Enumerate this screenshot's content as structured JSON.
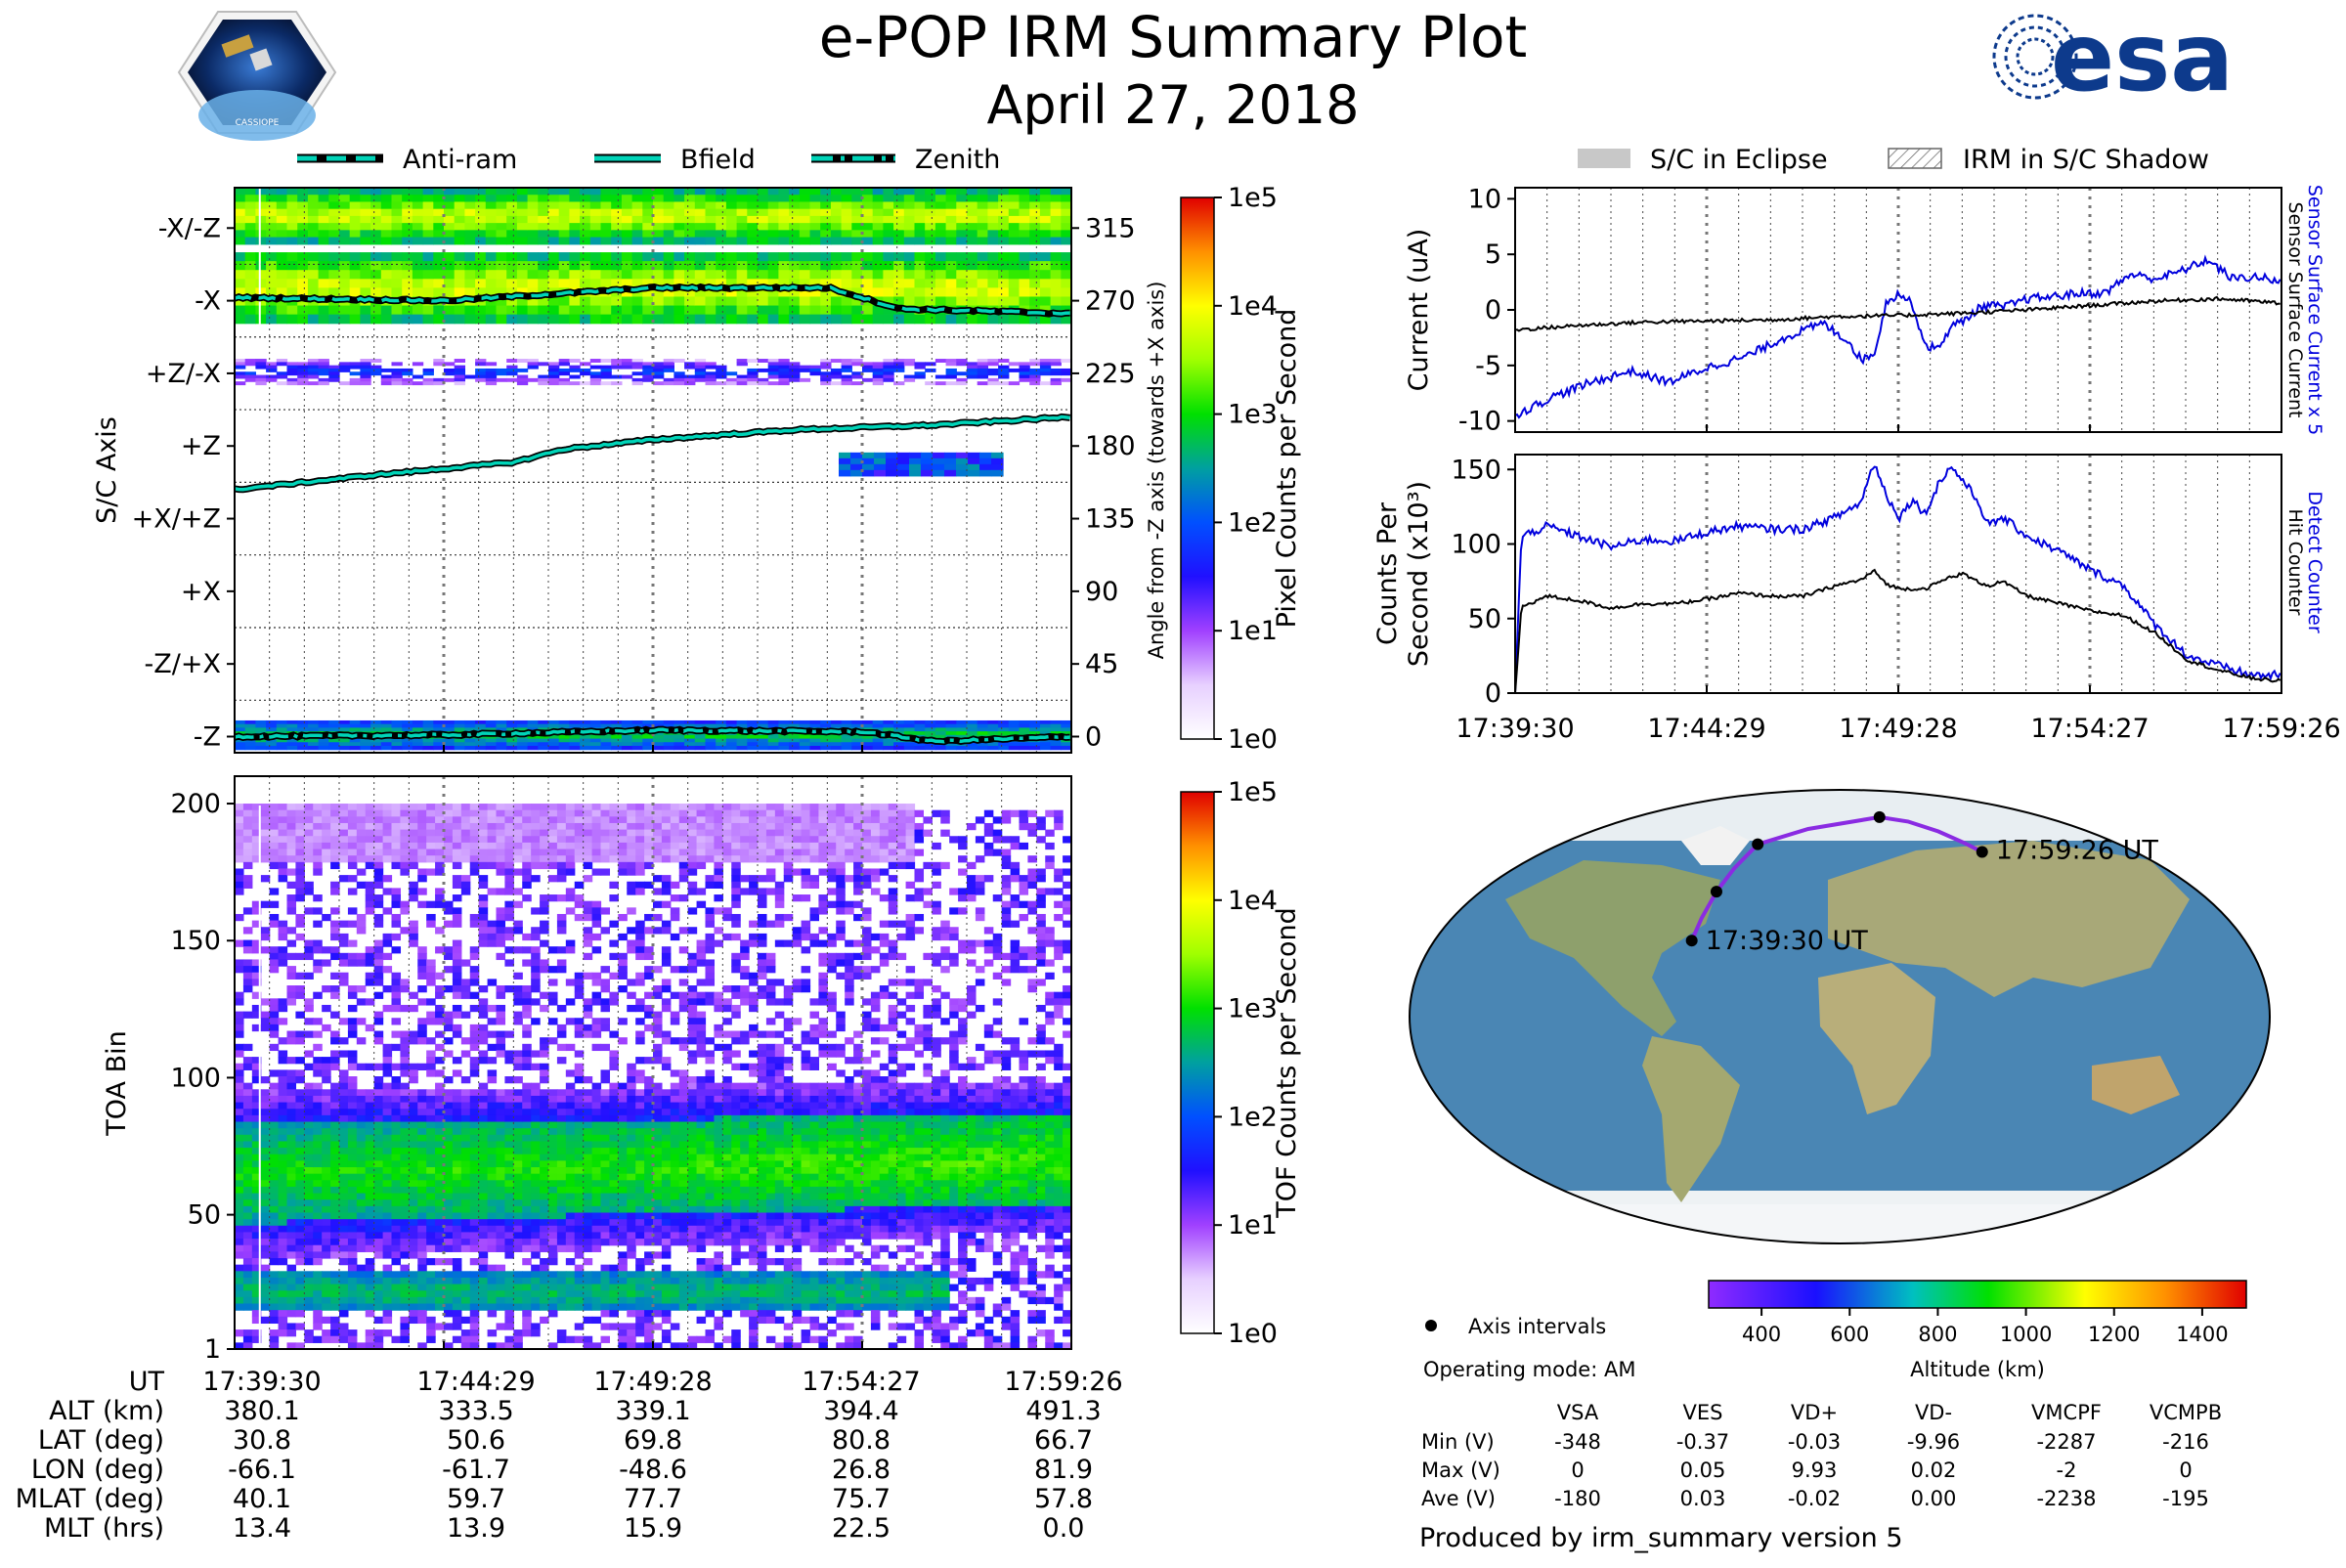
{
  "header": {
    "title": "e-POP IRM Summary Plot",
    "date": "April 27, 2018",
    "cassiope_logo_text": "CASSIOPE",
    "esa_logo_text": "esa"
  },
  "legend_left": {
    "items": [
      {
        "label": "Anti-ram",
        "style": "dashed"
      },
      {
        "label": "Bfield",
        "style": "solid"
      },
      {
        "label": "Zenith",
        "style": "dashdot"
      }
    ]
  },
  "legend_right": {
    "items": [
      {
        "label": "S/C in Eclipse",
        "style": "gray-fill"
      },
      {
        "label": "IRM in S/C Shadow",
        "style": "hatch"
      }
    ]
  },
  "colors": {
    "line_cyan": "#00d4b8",
    "blue_series": "#0000dd",
    "black_series": "#000000",
    "eclipse_gray": "#c8c8c8"
  },
  "colormap": [
    "#ffffff",
    "#e7d0ff",
    "#a040ff",
    "#2010ff",
    "#0050ff",
    "#00a0a0",
    "#00e000",
    "#a0ff00",
    "#ffff00",
    "#ff9000",
    "#e00000"
  ],
  "chart_data": [
    {
      "id": "pixel-spectrogram",
      "type": "heatmap",
      "ylabel": "S/C Axis",
      "right_ylabel": "Angle from -Z axis (towards +X axis)",
      "yticks": [
        "-X/-Z",
        "-X",
        "+Z/-X",
        "+Z",
        "+X/+Z",
        "+X",
        "-Z/+X",
        "-Z"
      ],
      "right_ticks": [
        "315",
        "270",
        "225",
        "180",
        "135",
        "90",
        "45",
        "0"
      ],
      "ylim": [
        -10,
        340
      ],
      "x_range_seconds": [
        0,
        1196
      ],
      "bands": [
        {
          "lo": 305,
          "hi": 340,
          "level": 3.3
        },
        {
          "lo": 256,
          "hi": 300,
          "level": 3.4
        },
        {
          "lo": 218,
          "hi": 234,
          "level": 1.4
        },
        {
          "lo": -8,
          "hi": 10,
          "level": 2.4
        }
      ],
      "lines": {
        "anti_ram": {
          "t": [
            0,
            300,
            600,
            850,
            950,
            1196
          ],
          "deg": [
            272,
            270,
            278,
            278,
            265,
            262
          ]
        },
        "bfield": {
          "t": [
            0,
            200,
            400,
            470,
            600,
            800,
            1000,
            1196
          ],
          "deg": [
            153,
            162,
            170,
            178,
            184,
            190,
            193,
            198
          ]
        },
        "zenith": {
          "t": [
            0,
            300,
            600,
            900,
            1000,
            1196
          ],
          "deg": [
            0,
            1,
            4,
            3,
            -3,
            0
          ]
        }
      },
      "colorbar": {
        "label": "Pixel Counts per Second",
        "ticks": [
          "1e0",
          "1e1",
          "1e2",
          "1e3",
          "1e4",
          "1e5"
        ]
      }
    },
    {
      "id": "toa-spectrogram",
      "type": "heatmap",
      "ylabel": "TOA Bin",
      "yticks": [
        "1",
        "50",
        "100",
        "150",
        "200"
      ],
      "ylim": [
        1,
        210
      ],
      "x_range_seconds": [
        0,
        1196
      ],
      "bands": [
        {
          "lo_start": 16,
          "hi_start": 30,
          "lo_end": 16,
          "hi_end": 30,
          "level": 2.3,
          "ends_at": 0.86
        },
        {
          "lo_start": 48,
          "hi_start": 84,
          "lo_end": 55,
          "hi_end": 88,
          "level": 2.5
        }
      ],
      "colorbar": {
        "label": "TOF Counts per Second",
        "ticks": [
          "1e0",
          "1e1",
          "1e2",
          "1e3",
          "1e4",
          "1e5"
        ]
      }
    },
    {
      "id": "current-plot",
      "type": "line",
      "ylabel": "Current (uA)",
      "right_label_blue": "Sensor Surface Current x 5",
      "right_label_black": "Sensor Surface Current",
      "ylim": [
        -11,
        11
      ],
      "yticks": [
        "10",
        "5",
        "0",
        "-5",
        "-10"
      ],
      "series": [
        {
          "name": "Sensor Surface Current x 5",
          "color": "blue",
          "t": [
            0,
            60,
            120,
            180,
            240,
            300,
            360,
            420,
            480,
            520,
            540,
            560,
            580,
            600,
            620,
            640,
            660,
            680,
            700,
            720,
            740,
            760,
            800,
            840,
            880,
            920,
            960,
            1000,
            1040,
            1080,
            1120,
            1160,
            1196
          ],
          "v": [
            -9.5,
            -7.8,
            -6.5,
            -5.5,
            -6.5,
            -5.2,
            -4.2,
            -2.5,
            -1.2,
            -2.8,
            -4.5,
            -4.0,
            0.8,
            1.5,
            0.5,
            -3.2,
            -3.5,
            -1.5,
            -1.0,
            0.0,
            0.5,
            0.2,
            1.0,
            1.2,
            1.5,
            1.5,
            3.2,
            2.8,
            3.5,
            4.5,
            2.8,
            3.0,
            2.4
          ]
        },
        {
          "name": "Sensor Surface Current",
          "color": "black",
          "t": [
            0,
            100,
            200,
            300,
            400,
            500,
            600,
            700,
            800,
            900,
            1000,
            1100,
            1196
          ],
          "v": [
            -1.8,
            -1.4,
            -1.1,
            -1.0,
            -0.9,
            -0.6,
            -0.5,
            -0.3,
            0.0,
            0.4,
            0.8,
            1.0,
            0.6
          ]
        }
      ]
    },
    {
      "id": "counts-plot",
      "type": "line",
      "ylabel_line1": "Counts Per",
      "ylabel_line2": "Second (x10³)",
      "right_label_blue": "Detect Counter",
      "right_label_black": "Hit Counter",
      "ylim": [
        0,
        160
      ],
      "yticks": [
        "150",
        "100",
        "50",
        "0"
      ],
      "series": [
        {
          "name": "Detect Counter",
          "color": "blue",
          "t": [
            0,
            10,
            50,
            100,
            150,
            200,
            250,
            300,
            350,
            400,
            450,
            500,
            540,
            560,
            580,
            600,
            620,
            640,
            660,
            680,
            700,
            720,
            740,
            760,
            800,
            850,
            900,
            950,
            1000,
            1050,
            1100,
            1150,
            1196
          ],
          "v": [
            0,
            105,
            112,
            105,
            98,
            103,
            102,
            108,
            112,
            110,
            110,
            118,
            128,
            155,
            132,
            118,
            130,
            120,
            140,
            152,
            142,
            130,
            112,
            118,
            105,
            95,
            82,
            72,
            45,
            25,
            18,
            12,
            12
          ]
        },
        {
          "name": "Hit Counter",
          "color": "black",
          "t": [
            0,
            10,
            50,
            100,
            150,
            200,
            250,
            300,
            350,
            400,
            450,
            500,
            540,
            560,
            580,
            600,
            640,
            680,
            700,
            720,
            740,
            760,
            800,
            850,
            900,
            950,
            1000,
            1050,
            1100,
            1150,
            1196
          ],
          "v": [
            0,
            58,
            65,
            62,
            57,
            60,
            60,
            63,
            67,
            65,
            65,
            72,
            76,
            82,
            73,
            70,
            70,
            78,
            80,
            75,
            72,
            75,
            65,
            60,
            55,
            52,
            40,
            22,
            15,
            10,
            8
          ]
        }
      ]
    },
    {
      "id": "ground-track-map",
      "type": "scatter",
      "projection": "Robinson",
      "track_lat": [
        30.8,
        40,
        50.6,
        60,
        69.8,
        76,
        80.8,
        79,
        75,
        70.5,
        66.7
      ],
      "track_lon": [
        -66.1,
        -64.5,
        -61.7,
        -57,
        -48.6,
        -20,
        26.8,
        45,
        62,
        74,
        81.9
      ],
      "axis_points": [
        {
          "lat": 30.8,
          "lon": -66.1
        },
        {
          "lat": 50.6,
          "lon": -61.7
        },
        {
          "lat": 69.8,
          "lon": -48.6
        },
        {
          "lat": 80.8,
          "lon": 26.8
        },
        {
          "lat": 66.7,
          "lon": 81.9
        }
      ],
      "start_label": "17:39:30 UT",
      "end_label": "17:59:26 UT",
      "altitude_colorbar": {
        "label": "Altitude (km)",
        "ticks": [
          "400",
          "600",
          "800",
          "1000",
          "1200",
          "1400"
        ],
        "range": [
          280,
          1500
        ]
      }
    }
  ],
  "time_axis": {
    "labels": [
      "17:39:30",
      "17:44:29",
      "17:49:28",
      "17:54:27",
      "17:59:26"
    ],
    "seconds": [
      0,
      299,
      598,
      897,
      1196
    ],
    "span": 1196
  },
  "ephemeris": {
    "row_labels": [
      "UT",
      "ALT (km)",
      "LAT (deg)",
      "LON (deg)",
      "MLAT (deg)",
      "MLT (hrs)"
    ],
    "columns": [
      [
        "17:39:30",
        "380.1",
        "30.8",
        "-66.1",
        "40.1",
        "13.4"
      ],
      [
        "17:44:29",
        "333.5",
        "50.6",
        "-61.7",
        "59.7",
        "13.9"
      ],
      [
        "17:49:28",
        "339.1",
        "69.8",
        "-48.6",
        "77.7",
        "15.9"
      ],
      [
        "17:54:27",
        "394.4",
        "80.8",
        "26.8",
        "75.7",
        "22.5"
      ],
      [
        "17:59:26",
        "491.3",
        "66.7",
        "81.9",
        "57.8",
        "0.0"
      ]
    ]
  },
  "info": {
    "axis_intervals": "Axis intervals",
    "operating_mode": "Operating mode: AM",
    "footer": "Produced by irm_summary version 5"
  },
  "voltage_table": {
    "headers": [
      "VSA",
      "VES",
      "VD+",
      "VD-",
      "VMCPF",
      "VCMPB"
    ],
    "rows": [
      {
        "label": "Min (V)",
        "values": [
          "-348",
          "-0.37",
          "-0.03",
          "-9.96",
          "-2287",
          "-216"
        ]
      },
      {
        "label": "Max (V)",
        "values": [
          "0",
          "0.05",
          "9.93",
          "0.02",
          "-2",
          "0"
        ]
      },
      {
        "label": "Ave (V)",
        "values": [
          "-180",
          "0.03",
          "-0.02",
          "0.00",
          "-2238",
          "-195"
        ]
      }
    ]
  }
}
